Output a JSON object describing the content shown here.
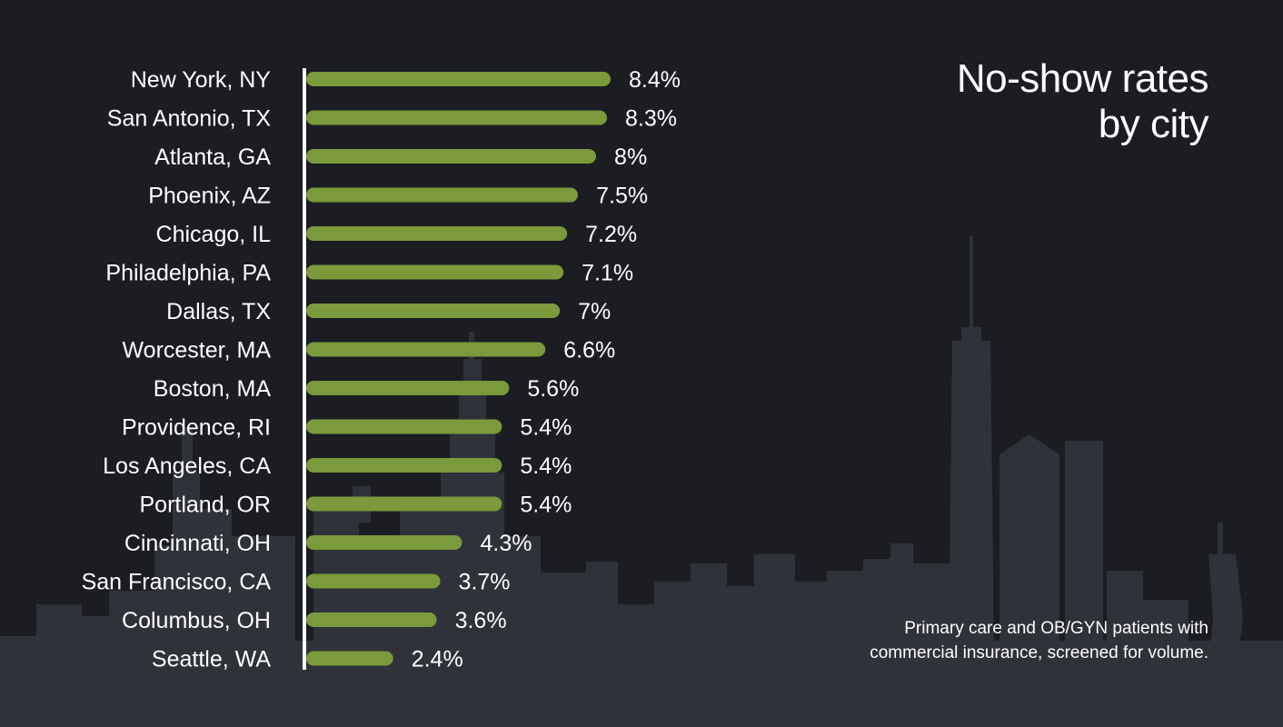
{
  "title_lines": [
    "No-show rates",
    "by city"
  ],
  "note_lines": [
    "Primary care and OB/GYN patients with",
    "commercial insurance, screened for volume."
  ],
  "colors": {
    "background": "#1b1d22",
    "skyline": "#2f3239",
    "bar": "#7a9a3c",
    "axis": "#ffffff",
    "text": "#ffffff"
  },
  "chart_data": {
    "type": "bar",
    "orientation": "horizontal",
    "categories": [
      "New York, NY",
      "San Antonio, TX",
      "Atlanta, GA",
      "Phoenix, AZ",
      "Chicago, IL",
      "Philadelphia, PA",
      "Dallas, TX",
      "Worcester, MA",
      "Boston, MA",
      "Providence, RI",
      "Los Angeles, CA",
      "Portland, OR",
      "Cincinnati, OH",
      "San Francisco, CA",
      "Columbus, OH",
      "Seattle, WA"
    ],
    "values": [
      8.4,
      8.3,
      8,
      7.5,
      7.2,
      7.1,
      7,
      6.6,
      5.6,
      5.4,
      5.4,
      5.4,
      4.3,
      3.7,
      3.6,
      2.4
    ],
    "value_labels": [
      "8.4%",
      "8.3%",
      "8%",
      "7.5%",
      "7.2%",
      "7.1%",
      "7%",
      "6.6%",
      "5.6%",
      "5.4%",
      "5.4%",
      "5.4%",
      "4.3%",
      "3.7%",
      "3.6%",
      "2.4%"
    ],
    "xlim": [
      0,
      8.4
    ],
    "grid": false,
    "legend": "none"
  }
}
